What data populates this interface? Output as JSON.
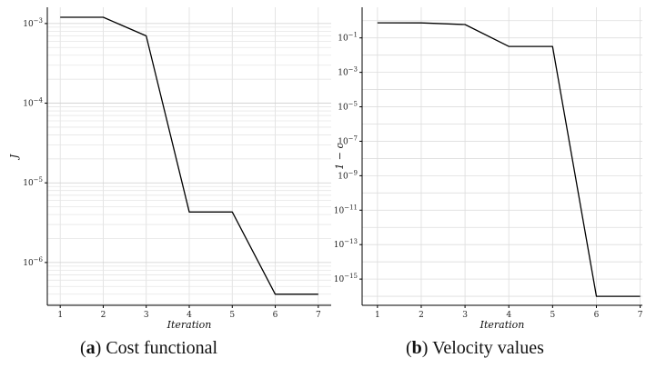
{
  "chart_data": [
    {
      "type": "line",
      "panel": "a",
      "caption_tag": "a",
      "caption_text": "Cost functional",
      "xlabel": "Iteration",
      "ylabel": "J",
      "yscale": "log",
      "grid": true,
      "legend": "none",
      "xlim": [
        0.7,
        7.3
      ],
      "ylim": [
        2.9e-07,
        0.0016
      ],
      "xticks": [
        1,
        2,
        3,
        4,
        5,
        6,
        7
      ],
      "yticks": [
        {
          "value": 1e-06,
          "label": "10",
          "exp": "−6"
        },
        {
          "value": 1e-05,
          "label": "10",
          "exp": "−5"
        },
        {
          "value": 0.0001,
          "label": "10",
          "exp": "−4"
        },
        {
          "value": 0.001,
          "label": "10",
          "exp": "−3"
        }
      ],
      "x": [
        1,
        2,
        3,
        4,
        5,
        6,
        7
      ],
      "y": [
        0.0012,
        0.0012,
        0.0007,
        4.3e-06,
        4.3e-06,
        4e-07,
        4e-07
      ]
    },
    {
      "type": "line",
      "panel": "b",
      "caption_tag": "b",
      "caption_text": "Velocity values",
      "xlabel": "Iteration",
      "ylabel": "1 − c",
      "yscale": "log",
      "grid": true,
      "legend": "none",
      "xlim": [
        0.65,
        7.05
      ],
      "ylim": [
        3e-17,
        6
      ],
      "xticks": [
        1,
        2,
        3,
        4,
        5,
        6,
        7
      ],
      "yticks": [
        {
          "value": 1e-15,
          "label": "10",
          "exp": "−15"
        },
        {
          "value": 1e-13,
          "label": "10",
          "exp": "−13"
        },
        {
          "value": 1e-11,
          "label": "10",
          "exp": "−11"
        },
        {
          "value": 1e-09,
          "label": "10",
          "exp": "−9"
        },
        {
          "value": 1e-07,
          "label": "10",
          "exp": "−7"
        },
        {
          "value": 1e-05,
          "label": "10",
          "exp": "−5"
        },
        {
          "value": 0.001,
          "label": "10",
          "exp": "−3"
        },
        {
          "value": 0.1,
          "label": "10",
          "exp": "−1"
        }
      ],
      "x": [
        1,
        2,
        3,
        4,
        5,
        6,
        7
      ],
      "y": [
        0.75,
        0.74,
        0.6,
        0.032,
        0.032,
        1e-16,
        1e-16
      ]
    }
  ],
  "colors": {
    "line": "#000000",
    "grid": "#dddddd",
    "axis": "#000000"
  }
}
